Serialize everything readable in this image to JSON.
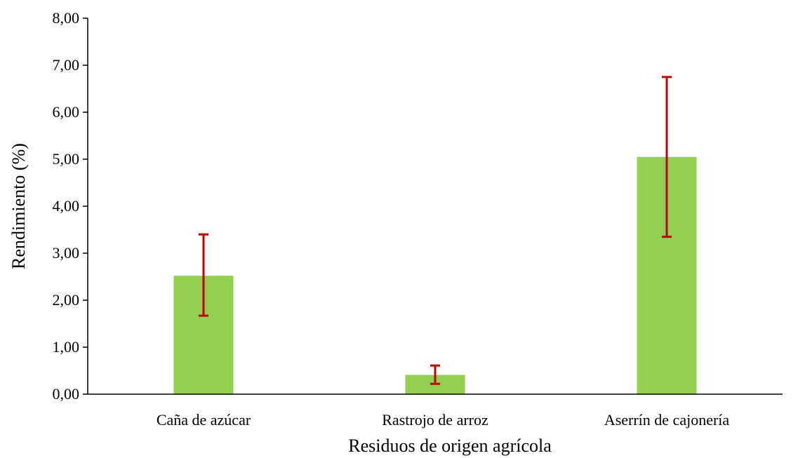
{
  "chart_data": {
    "type": "bar",
    "title": "",
    "xlabel": "Residuos de origen agrícola",
    "ylabel": "Rendimiento (%)",
    "categories": [
      "Caña de azúcar",
      "Rastrojo de arroz",
      "Aserrín de cajonería"
    ],
    "values": [
      2.52,
      0.41,
      5.05
    ],
    "error_low": [
      1.67,
      0.22,
      3.35
    ],
    "error_high": [
      3.4,
      0.61,
      6.75
    ],
    "ylim": [
      0,
      8
    ],
    "yticks": [
      0,
      1,
      2,
      3,
      4,
      5,
      6,
      7,
      8
    ],
    "ytick_labels": [
      "0,00",
      "1,00",
      "2,00",
      "3,00",
      "4,00",
      "5,00",
      "6,00",
      "7,00",
      "8,00"
    ],
    "grid": false,
    "legend": "none",
    "bar_color": "#92d050",
    "error_bar_color": "#c00000",
    "axis_color": "#000000"
  }
}
